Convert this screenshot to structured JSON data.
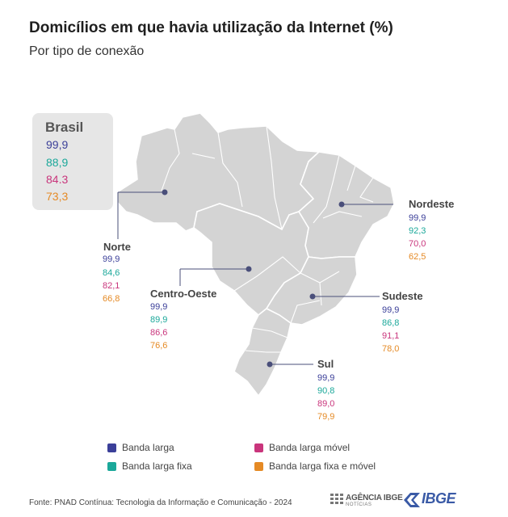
{
  "header": {
    "title": "Domicílios em que havia utilização da Internet (%)",
    "subtitle": "Por tipo de conexão"
  },
  "colors": {
    "banda_larga": "#3b3f99",
    "banda_larga_fixa": "#1ba89a",
    "banda_larga_movel": "#c9357c",
    "banda_larga_fixa_e_movel": "#e58a25",
    "map_fill": "#d4d4d4",
    "map_border": "#ffffff"
  },
  "brasil": {
    "label": "Brasil",
    "values": [
      "99,9",
      "88,9",
      "84.3",
      "73,3"
    ]
  },
  "regions": [
    {
      "key": "norte",
      "name": "Norte",
      "values": [
        "99,9",
        "84,6",
        "82,1",
        "66,8"
      ]
    },
    {
      "key": "nordeste",
      "name": "Nordeste",
      "values": [
        "99,9",
        "92,3",
        "70,0",
        "62,5"
      ]
    },
    {
      "key": "centro_oeste",
      "name": "Centro-Oeste",
      "values": [
        "99,9",
        "89,9",
        "86,6",
        "76,6"
      ]
    },
    {
      "key": "sudeste",
      "name": "Sudeste",
      "values": [
        "99,9",
        "86,8",
        "91,1",
        "78,0"
      ]
    },
    {
      "key": "sul",
      "name": "Sul",
      "values": [
        "99,9",
        "90,8",
        "89,0",
        "79,9"
      ]
    }
  ],
  "legend": {
    "banda_larga": "Banda larga",
    "banda_larga_fixa": "Banda larga fixa",
    "banda_larga_movel": "Banda larga móvel",
    "banda_larga_fixa_e_movel": "Banda larga fixa e móvel"
  },
  "footer": {
    "source": "Fonte: PNAD Contínua: Tecnologia da Informação e Comunicação - 2024",
    "agencia_logo": "AGÊNCIA IBGE",
    "agencia_sub": "NOTÍCIAS",
    "ibge_logo": "IBGE"
  }
}
